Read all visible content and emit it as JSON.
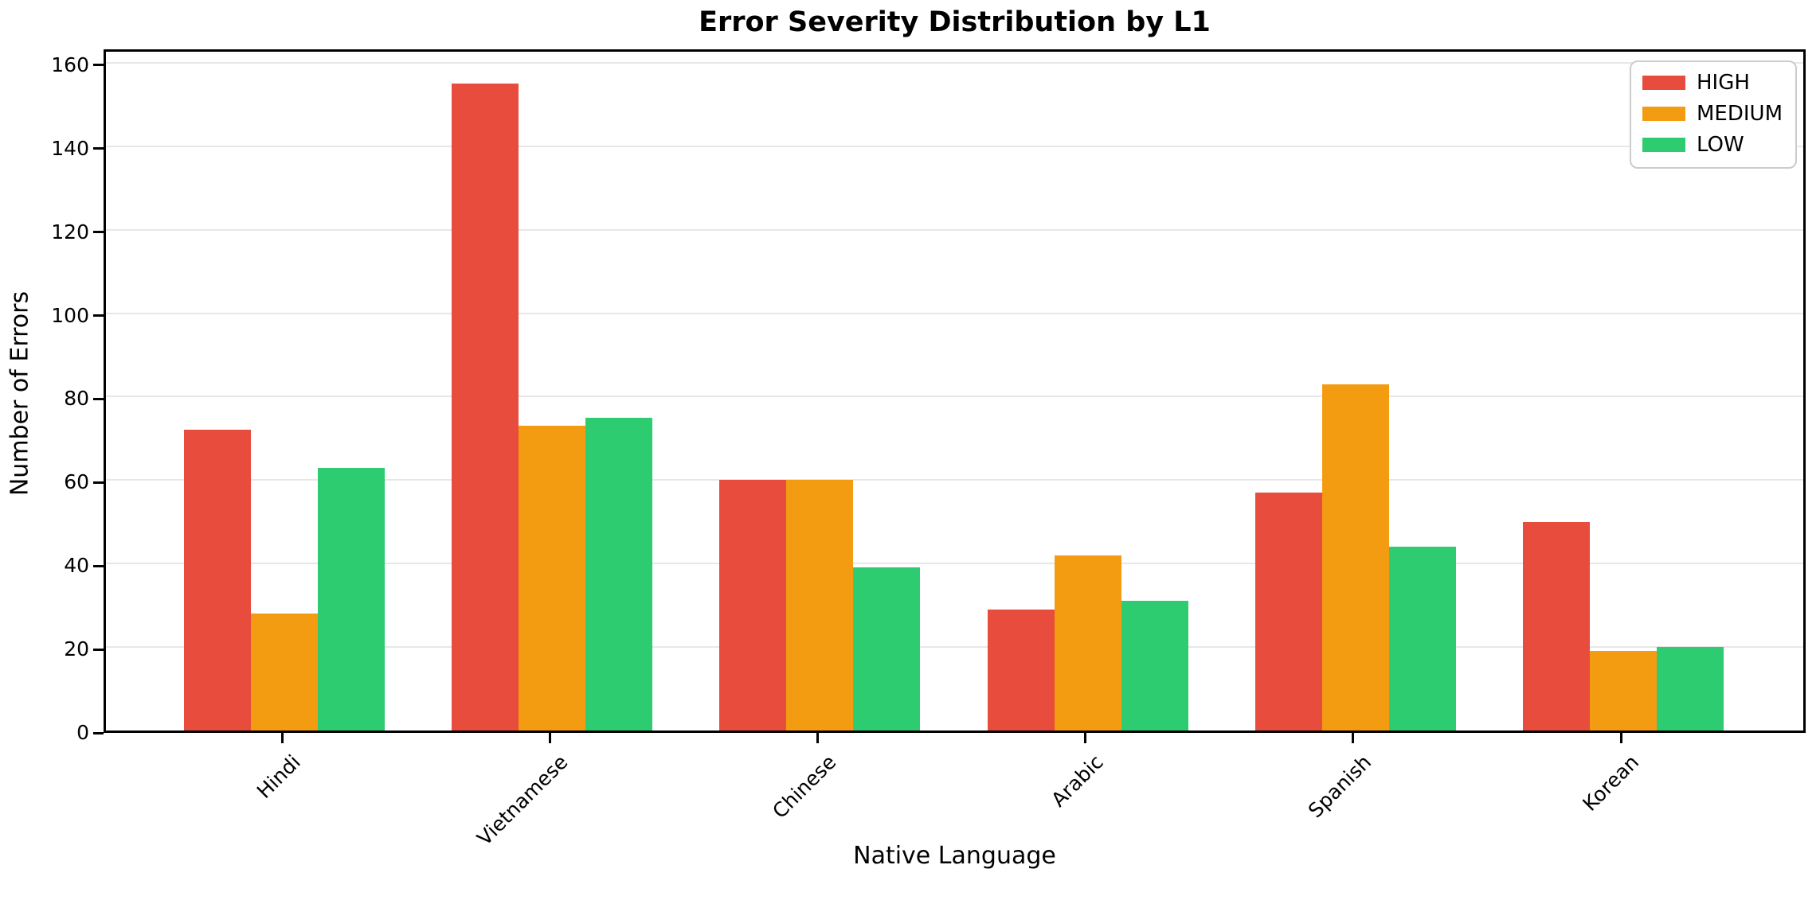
{
  "chart_data": {
    "type": "bar",
    "title": "Error Severity Distribution by L1",
    "xlabel": "Native Language",
    "ylabel": "Number of Errors",
    "categories": [
      "Hindi",
      "Vietnamese",
      "Chinese",
      "Arabic",
      "Spanish",
      "Korean"
    ],
    "series": [
      {
        "name": "HIGH",
        "color": "#e74c3c",
        "values": [
          72,
          155,
          60,
          29,
          57,
          50
        ]
      },
      {
        "name": "MEDIUM",
        "color": "#f39c12",
        "values": [
          28,
          73,
          60,
          42,
          83,
          19
        ]
      },
      {
        "name": "LOW",
        "color": "#2ecc71",
        "values": [
          63,
          75,
          39,
          31,
          44,
          20
        ]
      }
    ],
    "yticks": [
      0,
      20,
      40,
      60,
      80,
      100,
      120,
      140,
      160
    ],
    "ylim": [
      0,
      163.8
    ],
    "grid": "horizontal",
    "grid_color": "#e7e7e7",
    "legend_position": "upper right",
    "legend_labels": [
      "HIGH",
      "MEDIUM",
      "LOW"
    ]
  }
}
